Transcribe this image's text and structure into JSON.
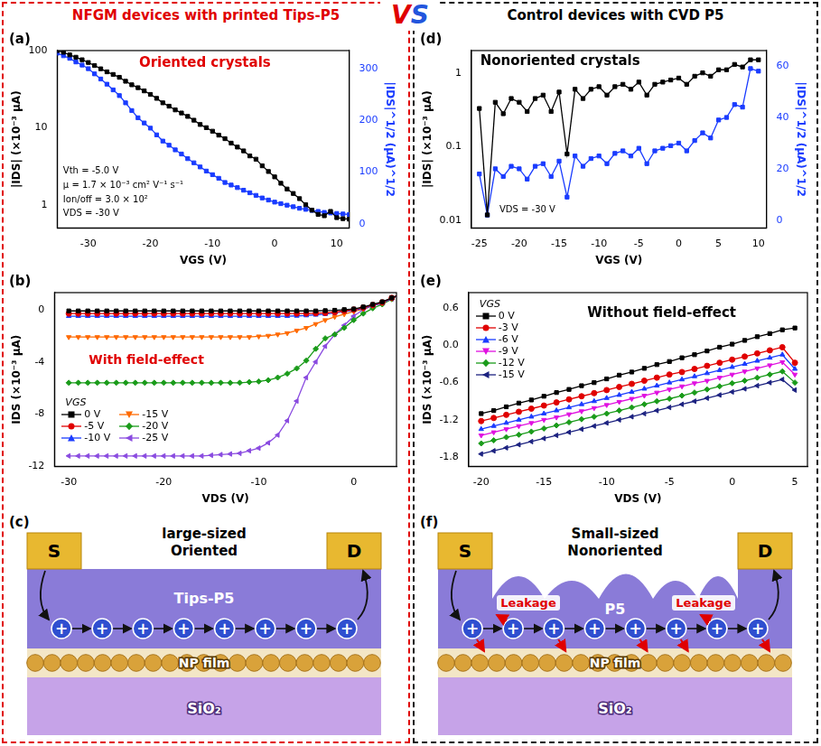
{
  "headers": {
    "left": "NFGM devices with printed Tips-P5",
    "right": "Control devices with CVD P5",
    "vs": "VS"
  },
  "chart_data": [
    {
      "panel": "(a)",
      "type": "line",
      "title": "Oriented crystals",
      "annotations": [
        "Vth = -5.0 V",
        "μ = 1.7 × 10⁻³ cm² V⁻¹ s⁻¹",
        "Ion/off = 3.0 × 10²",
        "VDS = -30 V"
      ],
      "x_label": "VGS (V)",
      "y_label": "|IDS| (×10⁻³ μA)",
      "y2_label": "|IDS|^1/2 (μA)^1/2",
      "log": "y",
      "grid": false,
      "xlim": [
        -35,
        12
      ],
      "xticks": [
        -30,
        -20,
        -10,
        0,
        10
      ],
      "ylim": [
        0.5,
        100
      ],
      "yticks": [
        1,
        10,
        100
      ],
      "y2lim": [
        -8,
        335
      ],
      "y2ticks": [
        0,
        100,
        200,
        300
      ],
      "x": [
        -35,
        -34,
        -33,
        -32,
        -31,
        -30,
        -29,
        -28,
        -27,
        -26,
        -25,
        -24,
        -23,
        -22,
        -21,
        -20,
        -19,
        -18,
        -17,
        -16,
        -15,
        -14,
        -13,
        -12,
        -11,
        -10,
        -9,
        -8,
        -7,
        -6,
        -5,
        -4,
        -3,
        -2,
        -1,
        0,
        1,
        2,
        3,
        4,
        5,
        6,
        7,
        8,
        9,
        10,
        11,
        12
      ],
      "series": [
        {
          "color": "#000000",
          "marker": "square",
          "values": [
            100,
            95,
            88,
            82,
            76,
            70,
            64,
            58,
            53,
            49,
            45,
            40,
            36,
            33,
            30,
            27,
            24,
            21,
            19,
            17,
            15.5,
            14,
            12.5,
            11,
            10,
            9,
            8,
            7.2,
            6.3,
            5.6,
            5,
            4.3,
            3.9,
            3.2,
            2.7,
            2.3,
            1.9,
            1.6,
            1.4,
            1.2,
            1,
            0.85,
            0.75,
            0.72,
            0.82,
            0.68,
            0.66,
            0.65
          ]
        },
        {
          "color": "#1a3cff",
          "marker": "square",
          "axis": "y2",
          "values": [
            330,
            325,
            320,
            313,
            307,
            300,
            290,
            280,
            270,
            259,
            248,
            234,
            219,
            205,
            195,
            185,
            172,
            160,
            152,
            143,
            135,
            126,
            118,
            110,
            102,
            95,
            88,
            80,
            75,
            70,
            65,
            60,
            55,
            50,
            46,
            42,
            39,
            36,
            33,
            30,
            28,
            26,
            24,
            22,
            21,
            20,
            19,
            18
          ]
        }
      ]
    },
    {
      "panel": "(b)",
      "type": "line",
      "title": "With field-effect",
      "x_label": "VDS (V)",
      "y_label": "IDS (×10⁻³ μA)",
      "grid": false,
      "xlim": [
        -31.5,
        4.5
      ],
      "xticks": [
        -30,
        -20,
        -10,
        0
      ],
      "ylim": [
        -12,
        1.3
      ],
      "yticks": [
        0,
        -4,
        -8,
        -12
      ],
      "legend": "lower left",
      "legend_title": "VGS",
      "x": [
        -30,
        -29,
        -28,
        -27,
        -26,
        -25,
        -24,
        -23,
        -22,
        -21,
        -20,
        -19,
        -18,
        -17,
        -16,
        -15,
        -14,
        -13,
        -12,
        -11,
        -10,
        -9,
        -8,
        -7,
        -6,
        -5,
        -4,
        -3,
        -2,
        -1,
        0,
        1,
        2,
        3,
        4,
        5
      ],
      "series": [
        {
          "name": "0 V",
          "color": "#000000",
          "marker": "square",
          "values": [
            -0.1,
            -0.1,
            -0.1,
            -0.1,
            -0.1,
            -0.1,
            -0.1,
            -0.1,
            -0.1,
            -0.1,
            -0.1,
            -0.1,
            -0.1,
            -0.1,
            -0.1,
            -0.1,
            -0.1,
            -0.1,
            -0.1,
            -0.1,
            -0.1,
            -0.1,
            -0.1,
            -0.1,
            -0.1,
            -0.1,
            -0.1,
            -0.08,
            -0.05,
            0,
            0.05,
            0.2,
            0.4,
            0.6,
            0.9,
            1.2
          ]
        },
        {
          "name": "-5 V",
          "color": "#e00000",
          "marker": "circle",
          "values": [
            -0.3,
            -0.3,
            -0.3,
            -0.3,
            -0.3,
            -0.3,
            -0.3,
            -0.3,
            -0.3,
            -0.3,
            -0.3,
            -0.3,
            -0.3,
            -0.3,
            -0.3,
            -0.3,
            -0.3,
            -0.3,
            -0.3,
            -0.3,
            -0.3,
            -0.3,
            -0.3,
            -0.3,
            -0.3,
            -0.3,
            -0.28,
            -0.25,
            -0.2,
            -0.1,
            0,
            0.15,
            0.35,
            0.55,
            0.9,
            1.2
          ]
        },
        {
          "name": "-10 V",
          "color": "#1a3cff",
          "marker": "triangle",
          "values": [
            -0.5,
            -0.5,
            -0.5,
            -0.5,
            -0.5,
            -0.5,
            -0.5,
            -0.5,
            -0.5,
            -0.5,
            -0.5,
            -0.5,
            -0.5,
            -0.5,
            -0.5,
            -0.5,
            -0.5,
            -0.5,
            -0.5,
            -0.5,
            -0.5,
            -0.5,
            -0.5,
            -0.5,
            -0.48,
            -0.45,
            -0.4,
            -0.35,
            -0.25,
            -0.15,
            -0.05,
            0.1,
            0.3,
            0.5,
            0.85,
            1.2
          ]
        },
        {
          "name": "-15 V",
          "color": "#ff6a00",
          "marker": "triangle_down",
          "values": [
            -2.1,
            -2.1,
            -2.1,
            -2.1,
            -2.1,
            -2.1,
            -2.1,
            -2.1,
            -2.1,
            -2.1,
            -2.1,
            -2.1,
            -2.1,
            -2.1,
            -2.1,
            -2.1,
            -2.1,
            -2.1,
            -2.1,
            -2.1,
            -2.05,
            -2,
            -1.9,
            -1.8,
            -1.6,
            -1.4,
            -1.1,
            -0.8,
            -0.55,
            -0.35,
            -0.15,
            0.05,
            0.3,
            0.5,
            0.85,
            1.2
          ]
        },
        {
          "name": "-20 V",
          "color": "#1a9b1a",
          "marker": "diamond",
          "values": [
            -5.6,
            -5.6,
            -5.6,
            -5.6,
            -5.6,
            -5.6,
            -5.6,
            -5.6,
            -5.6,
            -5.6,
            -5.6,
            -5.6,
            -5.6,
            -5.6,
            -5.6,
            -5.6,
            -5.6,
            -5.6,
            -5.6,
            -5.55,
            -5.5,
            -5.4,
            -5.2,
            -4.9,
            -4.5,
            -3.9,
            -3,
            -2.2,
            -1.9,
            -1.4,
            -0.8,
            -0.3,
            0.1,
            0.4,
            0.8,
            1.2
          ]
        },
        {
          "name": "-25 V",
          "color": "#8a4be0",
          "marker": "triangle_left",
          "values": [
            -11.2,
            -11.2,
            -11.2,
            -11.2,
            -11.2,
            -11.2,
            -11.2,
            -11.2,
            -11.2,
            -11.2,
            -11.2,
            -11.2,
            -11.2,
            -11.2,
            -11.2,
            -11.15,
            -11.1,
            -11.05,
            -11,
            -10.8,
            -10.6,
            -10.2,
            -9.6,
            -8.5,
            -7,
            -5.2,
            -4,
            -2.8,
            -1.9,
            -1.2,
            -0.5,
            0,
            0.3,
            0.5,
            0.8,
            1.2
          ]
        }
      ]
    },
    {
      "panel": "(d)",
      "type": "line",
      "title": "Nonoriented crystals",
      "annotations": [
        "VDS = -30 V"
      ],
      "x_label": "VGS (V)",
      "y_label": "|IDS| (×10⁻³ μA)",
      "y2_label": "|IDS|^1/2 (μA)^1/2",
      "log": "y",
      "grid": false,
      "xlim": [
        -26,
        11
      ],
      "xticks": [
        -25,
        -20,
        -15,
        -10,
        -5,
        0,
        5,
        10
      ],
      "ylim": [
        0.008,
        2
      ],
      "yticks": [
        0.01,
        0.1,
        1
      ],
      "y2lim": [
        -3,
        66
      ],
      "y2ticks": [
        0,
        20,
        40,
        60
      ],
      "x": [
        -25,
        -24,
        -23,
        -22,
        -21,
        -20,
        -19,
        -18,
        -17,
        -16,
        -15,
        -14,
        -13,
        -12,
        -11,
        -10,
        -9,
        -8,
        -7,
        -6,
        -5,
        -4,
        -3,
        -2,
        -1,
        0,
        1,
        2,
        3,
        4,
        5,
        6,
        7,
        8,
        9,
        10
      ],
      "series": [
        {
          "color": "#000000",
          "marker": "square",
          "values": [
            0.33,
            0.012,
            0.4,
            0.28,
            0.45,
            0.4,
            0.3,
            0.45,
            0.5,
            0.3,
            0.55,
            0.08,
            0.6,
            0.45,
            0.6,
            0.65,
            0.5,
            0.65,
            0.7,
            0.6,
            0.75,
            0.5,
            0.7,
            0.75,
            0.8,
            0.85,
            0.7,
            0.9,
            1,
            0.9,
            1.1,
            1.1,
            1.3,
            1.2,
            1.5,
            1.5
          ]
        },
        {
          "color": "#1a3cff",
          "marker": "square",
          "axis": "y2",
          "values": [
            18,
            2,
            20,
            17,
            21,
            20,
            16,
            21,
            22,
            17,
            23,
            9,
            25,
            21,
            24,
            25,
            22,
            26,
            27,
            25,
            28,
            22,
            27,
            28,
            29,
            30,
            27,
            31,
            34,
            32,
            39,
            40,
            45,
            44,
            59,
            58
          ]
        }
      ]
    },
    {
      "panel": "(e)",
      "type": "line",
      "title": "Without field-effect",
      "x_label": "VDS (V)",
      "y_label": "IDS (×10⁻³ μA)",
      "grid": false,
      "xlim": [
        -21,
        6
      ],
      "xticks": [
        -20,
        -15,
        -10,
        -5,
        0,
        5
      ],
      "ylim": [
        -1.95,
        0.85
      ],
      "yticks": [
        0.6,
        {
          "value": 0,
          "label": "0.0"
        },
        -0.6,
        -1.2,
        -1.8
      ],
      "legend": "upper left",
      "legend_title": "VGS",
      "x": [
        -20,
        -19,
        -18,
        -17,
        -16,
        -15,
        -14,
        -13,
        -12,
        -11,
        -10,
        -9,
        -8,
        -7,
        -6,
        -5,
        -4,
        -3,
        -2,
        -1,
        0,
        1,
        2,
        3,
        4,
        5
      ],
      "series": [
        {
          "name": "0 V",
          "color": "#000000",
          "marker": "square",
          "values": [
            -1.1,
            -1.05,
            -0.99,
            -0.93,
            -0.88,
            -0.82,
            -0.76,
            -0.71,
            -0.65,
            -0.6,
            -0.54,
            -0.48,
            -0.43,
            -0.37,
            -0.31,
            -0.26,
            -0.2,
            -0.15,
            -0.09,
            -0.03,
            0.02,
            0.08,
            0.14,
            0.19,
            0.25,
            0.28
          ]
        },
        {
          "name": "-3 V",
          "color": "#e00000",
          "marker": "circle",
          "values": [
            -1.22,
            -1.17,
            -1.12,
            -1.07,
            -1.02,
            -0.97,
            -0.92,
            -0.87,
            -0.82,
            -0.77,
            -0.72,
            -0.67,
            -0.62,
            -0.57,
            -0.52,
            -0.47,
            -0.43,
            -0.38,
            -0.33,
            -0.28,
            -0.23,
            -0.18,
            -0.13,
            -0.08,
            -0.03,
            -0.28
          ]
        },
        {
          "name": "-6 V",
          "color": "#1a3cff",
          "marker": "triangle",
          "values": [
            -1.35,
            -1.3,
            -1.25,
            -1.2,
            -1.15,
            -1.1,
            -1.05,
            -1,
            -0.95,
            -0.9,
            -0.85,
            -0.8,
            -0.75,
            -0.7,
            -0.65,
            -0.6,
            -0.55,
            -0.5,
            -0.45,
            -0.4,
            -0.35,
            -0.3,
            -0.25,
            -0.2,
            -0.15,
            -0.38
          ]
        },
        {
          "name": "-9 V",
          "color": "#e010e0",
          "marker": "triangle_down",
          "values": [
            -1.45,
            -1.4,
            -1.35,
            -1.3,
            -1.25,
            -1.2,
            -1.16,
            -1.11,
            -1.06,
            -1.01,
            -0.96,
            -0.91,
            -0.86,
            -0.81,
            -0.76,
            -0.71,
            -0.66,
            -0.61,
            -0.57,
            -0.52,
            -0.47,
            -0.42,
            -0.37,
            -0.32,
            -0.27,
            -0.47
          ]
        },
        {
          "name": "-12 V",
          "color": "#1a9b1a",
          "marker": "diamond",
          "values": [
            -1.58,
            -1.53,
            -1.48,
            -1.44,
            -1.39,
            -1.34,
            -1.29,
            -1.24,
            -1.19,
            -1.15,
            -1.1,
            -1.05,
            -1,
            -0.95,
            -0.9,
            -0.86,
            -0.81,
            -0.76,
            -0.71,
            -0.66,
            -0.61,
            -0.57,
            -0.52,
            -0.47,
            -0.42,
            -0.6
          ]
        },
        {
          "name": "-15 V",
          "color": "#1c2280",
          "marker": "triangle_left",
          "values": [
            -1.75,
            -1.7,
            -1.65,
            -1.6,
            -1.55,
            -1.5,
            -1.45,
            -1.4,
            -1.35,
            -1.3,
            -1.25,
            -1.2,
            -1.15,
            -1.1,
            -1.05,
            -1,
            -0.95,
            -0.9,
            -0.85,
            -0.8,
            -0.75,
            -0.7,
            -0.65,
            -0.6,
            -0.55,
            -0.72
          ]
        }
      ]
    }
  ],
  "diagrams": [
    {
      "panel": "(c)",
      "source": "S",
      "drain": "D",
      "heading": [
        "large-sized",
        "Oriented"
      ],
      "semiconductor": "Tips-P5",
      "charge": "+",
      "charges": 8,
      "np_layer": "NP film",
      "substrate": "SiO₂"
    },
    {
      "panel": "(f)",
      "source": "S",
      "drain": "D",
      "heading": [
        "Small-sized",
        "Nonoriented"
      ],
      "semiconductor": "P5",
      "charge": "+",
      "charges": 8,
      "leakage": [
        "Leakage",
        "Leakage"
      ],
      "np_layer": "NP film",
      "substrate": "SiO₂"
    }
  ]
}
